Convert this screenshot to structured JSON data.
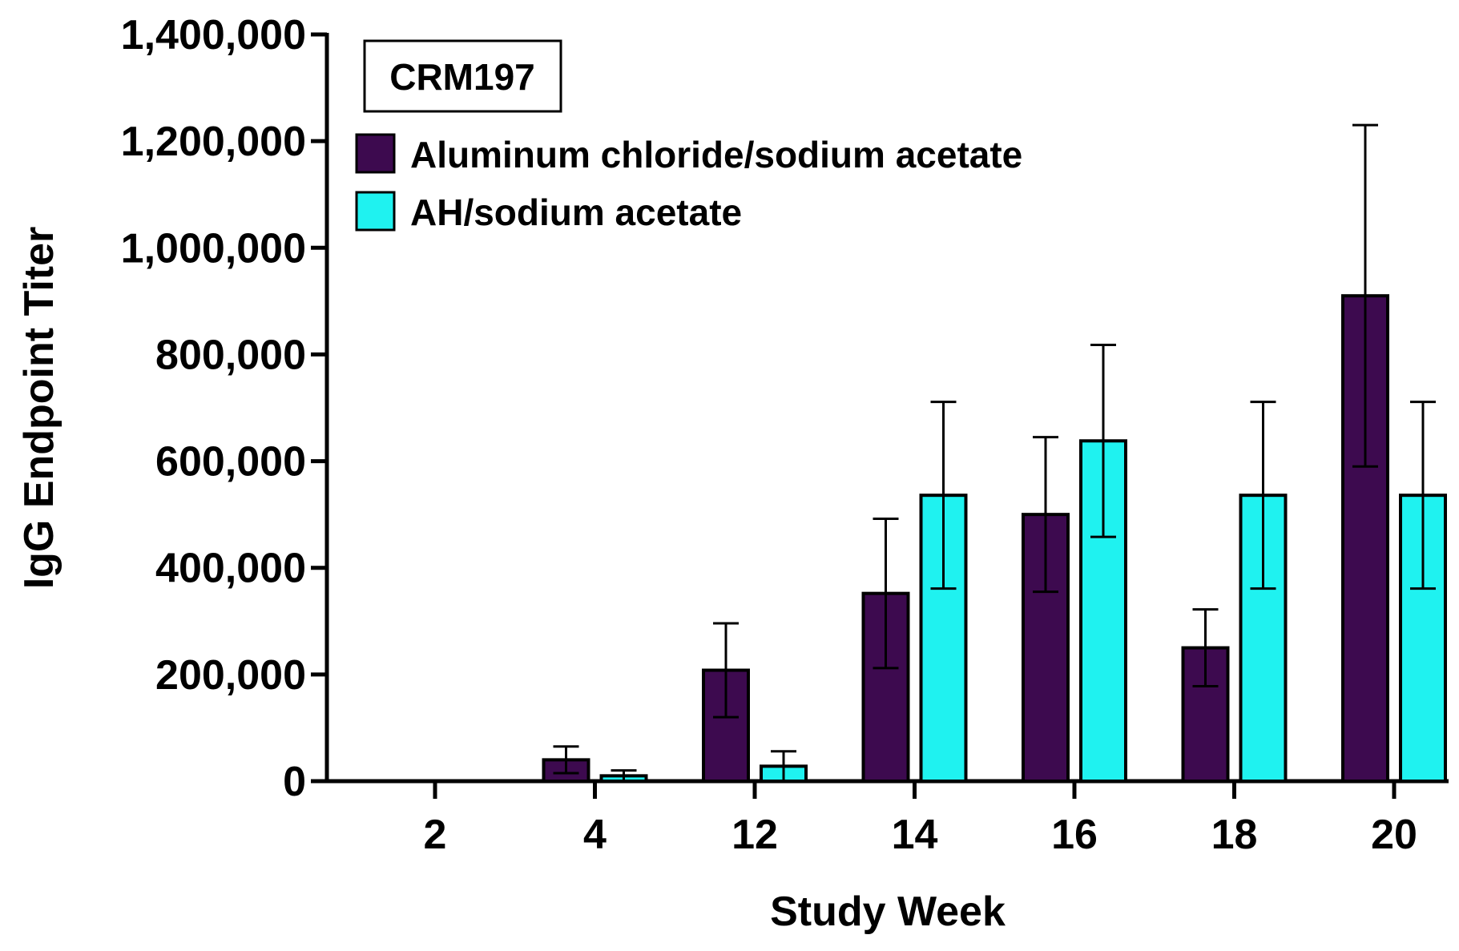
{
  "chart_data": {
    "type": "bar",
    "title": "CRM197",
    "xlabel": "Study Week",
    "ylabel": "IgG Endpoint Titer",
    "ylim": [
      0,
      1400000
    ],
    "yticks": [
      0,
      200000,
      400000,
      600000,
      800000,
      1000000,
      1200000,
      1400000
    ],
    "ytick_labels": [
      "0",
      "200,000",
      "400,000",
      "600,000",
      "800,000",
      "1,000,000",
      "1,200,000",
      "1,400,000"
    ],
    "categories": [
      "2",
      "4",
      "12",
      "14",
      "16",
      "18",
      "20"
    ],
    "legend_position": "top-left",
    "series": [
      {
        "name": "Aluminum chloride/sodium acetate",
        "color": "#3d0a4f",
        "values": [
          0,
          40000,
          208000,
          352000,
          500000,
          250000,
          910000
        ],
        "error": [
          0,
          25000,
          88000,
          140000,
          145000,
          72000,
          320000
        ]
      },
      {
        "name": "AH/sodium acetate",
        "color": "#1ff2f0",
        "values": [
          0,
          10000,
          28000,
          536000,
          638000,
          536000,
          536000
        ],
        "error": [
          0,
          10000,
          28000,
          175000,
          180000,
          175000,
          175000
        ]
      }
    ]
  }
}
